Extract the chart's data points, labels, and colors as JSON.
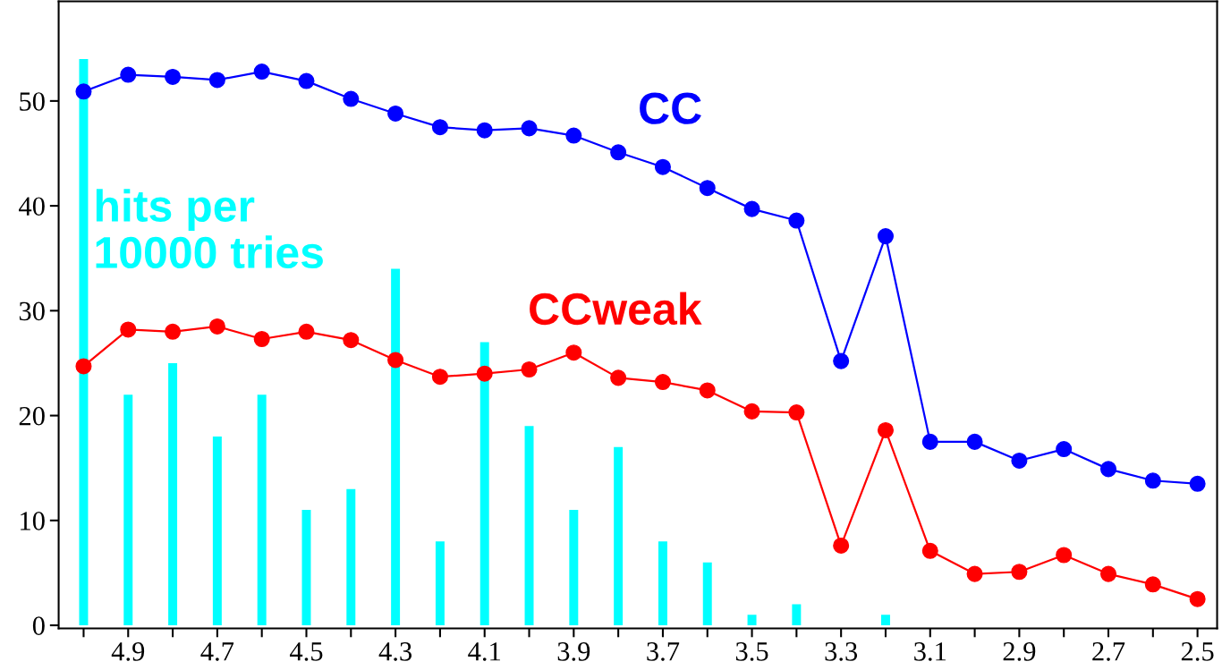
{
  "chart_data": {
    "type": "line",
    "x": [
      5.0,
      4.9,
      4.8,
      4.7,
      4.6,
      4.5,
      4.4,
      4.3,
      4.2,
      4.1,
      4.0,
      3.9,
      3.8,
      3.7,
      3.6,
      3.5,
      3.4,
      3.3,
      3.2,
      3.1,
      3.0,
      2.9,
      2.8,
      2.7,
      2.6,
      2.5
    ],
    "series": [
      {
        "name": "hits per\n10000 tries",
        "type": "bar",
        "color": "#00ffff",
        "values": [
          54,
          22,
          25,
          18,
          22,
          11,
          13,
          34,
          8,
          27,
          19,
          11,
          17,
          8,
          6,
          1,
          2,
          0,
          1,
          0,
          0,
          0,
          0,
          0,
          0,
          0
        ]
      },
      {
        "name": "CC",
        "color": "#0000ff",
        "values": [
          50.9,
          52.5,
          52.3,
          52.0,
          52.8,
          51.9,
          50.2,
          48.8,
          47.5,
          47.2,
          47.4,
          46.7,
          45.1,
          43.7,
          41.7,
          39.7,
          38.6,
          25.2,
          37.1,
          17.5,
          17.5,
          15.7,
          16.8,
          14.9,
          13.8,
          13.5
        ]
      },
      {
        "name": "CCweak",
        "color": "#ff0000",
        "values": [
          24.7,
          28.2,
          28.0,
          28.5,
          27.3,
          28.0,
          27.2,
          25.3,
          23.7,
          24.0,
          24.4,
          26.0,
          23.6,
          23.2,
          22.4,
          20.4,
          20.3,
          7.6,
          18.6,
          7.1,
          4.9,
          5.1,
          6.7,
          4.9,
          3.9,
          2.5
        ]
      }
    ],
    "marker": "circle",
    "line_style": "solid",
    "xlim": [
      5.056,
      2.456
    ],
    "xticks": [
      {
        "value": 5.0,
        "label": null
      },
      4.9,
      {
        "value": 4.8,
        "label": null
      },
      4.7,
      {
        "value": 4.6,
        "label": null
      },
      4.5,
      {
        "value": 4.4,
        "label": null
      },
      4.3,
      {
        "value": 4.2,
        "label": null
      },
      4.1,
      {
        "value": 4.0,
        "label": null
      },
      3.9,
      {
        "value": 3.8,
        "label": null
      },
      3.7,
      {
        "value": 3.6,
        "label": null
      },
      3.5,
      {
        "value": 3.4,
        "label": null
      },
      3.3,
      {
        "value": 3.2,
        "label": null
      },
      3.1,
      {
        "value": 3.0,
        "label": null
      },
      2.9,
      {
        "value": 2.8,
        "label": null
      },
      2.7,
      {
        "value": 2.6,
        "label": null
      },
      2.5
    ],
    "ylim": [
      -0.3,
      59.5
    ],
    "yticks": [
      0,
      10,
      20,
      30,
      40,
      50
    ],
    "grid": false,
    "legend": false
  }
}
